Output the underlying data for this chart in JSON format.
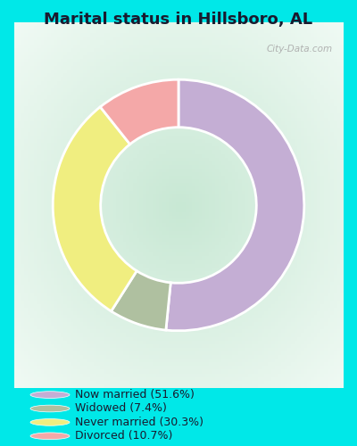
{
  "title": "Marital status in Hillsboro, AL",
  "slices": [
    51.6,
    7.4,
    30.3,
    10.7
  ],
  "colors": [
    "#c4aed4",
    "#afc0a0",
    "#f0ee80",
    "#f4a8a8"
  ],
  "labels": [
    "Now married (51.6%)",
    "Widowed (7.4%)",
    "Never married (30.3%)",
    "Divorced (10.7%)"
  ],
  "legend_colors": [
    "#c4aed4",
    "#afc0a0",
    "#f0ee80",
    "#f4a8a8"
  ],
  "bg_cyan": "#00e8e8",
  "chart_bg_center": "#c8e8d0",
  "chart_bg_edge": "#e8f4ee",
  "title_fontsize": 13,
  "watermark": "City-Data.com",
  "donut_width": 0.38
}
